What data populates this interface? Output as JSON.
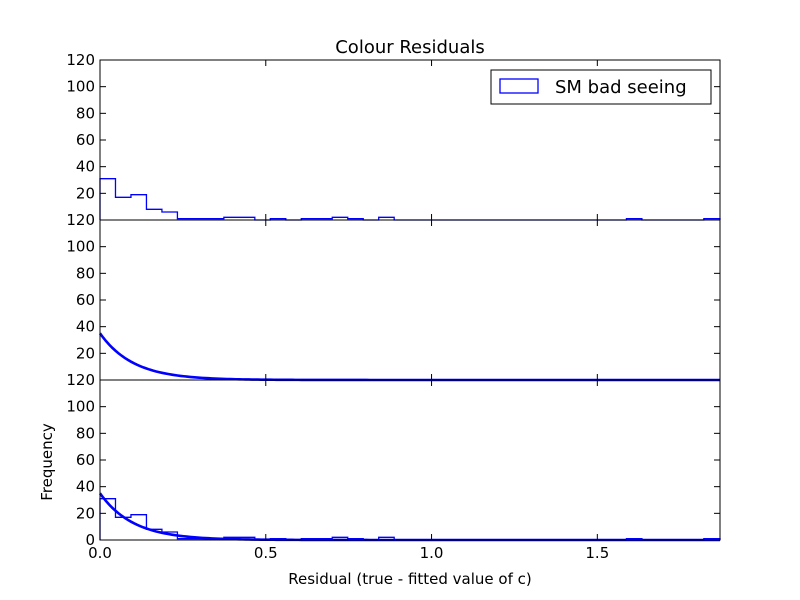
{
  "chart_data": {
    "type": "histogram",
    "title": "Colour Residuals",
    "xlabel": "Residual (true - fitted value of c)",
    "ylabel": "Frequency",
    "xlim": [
      0,
      1.87
    ],
    "ylim": [
      0,
      120
    ],
    "x_ticks": [
      "0.0",
      "0.5",
      "1.0",
      "1.5"
    ],
    "x_tick_values": [
      0,
      0.5,
      1.0,
      1.5
    ],
    "y_ticks": [
      "0",
      "20",
      "40",
      "60",
      "80",
      "100",
      "120"
    ],
    "y_tick_values": [
      0,
      20,
      40,
      60,
      80,
      100,
      120
    ],
    "accent_color": "#0000ff",
    "histogram": {
      "name": "SM bad seeing",
      "bin_edges": [
        0,
        0.0467,
        0.0934,
        0.1401,
        0.1868,
        0.2335,
        0.2802,
        0.3269,
        0.3736,
        0.4203,
        0.467,
        0.5137,
        0.5604,
        0.6071,
        0.6538,
        0.7005,
        0.7472,
        0.7939,
        0.8406,
        0.8873,
        0.934,
        0.9807,
        1.0274,
        1.0741,
        1.1208,
        1.1675,
        1.2142,
        1.2609,
        1.3076,
        1.3543,
        1.401,
        1.4477,
        1.4944,
        1.5411,
        1.5878,
        1.6345,
        1.6812,
        1.7279,
        1.7746,
        1.8213,
        1.87
      ],
      "counts": [
        31,
        17,
        19,
        8,
        6,
        1,
        1,
        1,
        2,
        2,
        0,
        1,
        0,
        1,
        1,
        2,
        1,
        0,
        2,
        0,
        0,
        0,
        0,
        0,
        0,
        0,
        0,
        0,
        0,
        0,
        0,
        0,
        0,
        0,
        1,
        0,
        0,
        0,
        0,
        1
      ]
    },
    "fit_curve": {
      "model": "exponential",
      "amplitude": 35,
      "scale": 0.1
    },
    "panels": [
      {
        "shows": [
          "histogram"
        ],
        "legend": "top-right"
      },
      {
        "shows": [
          "fit_curve"
        ]
      },
      {
        "shows": [
          "histogram",
          "fit_curve"
        ]
      }
    ]
  }
}
